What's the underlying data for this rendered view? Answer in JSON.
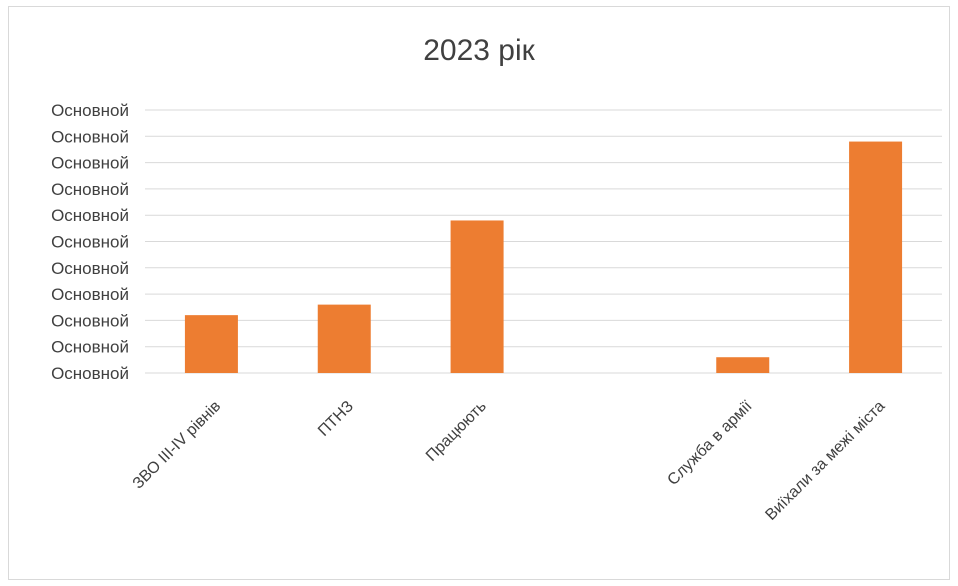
{
  "chart_data": {
    "type": "bar",
    "title": "2023 рік",
    "categories": [
      "ЗВО ІІІ-ІV рівнів",
      "ПТНЗ",
      "Працюють",
      "",
      "Служба в армії",
      "Виїхали за межі міста"
    ],
    "values": [
      2.2,
      2.6,
      5.8,
      0,
      0.6,
      8.8
    ],
    "ylim": [
      0,
      10
    ],
    "ytick_labels": [
      "Основной",
      "Основной",
      "Основной",
      "Основной",
      "Основной",
      "Основной",
      "Основной",
      "Основной",
      "Основной",
      "Основной",
      "Основной"
    ],
    "grid": true,
    "legend": "none",
    "bar_color": "#ED7D31"
  }
}
